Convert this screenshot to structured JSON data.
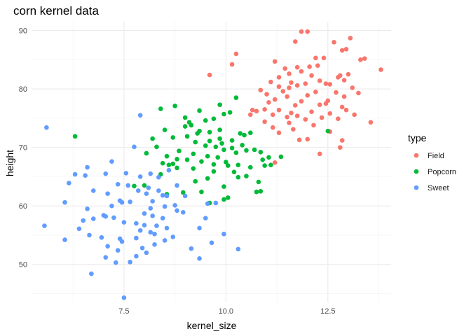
{
  "chart_data": {
    "type": "scatter",
    "title": "corn kernel data",
    "xlabel": "kernel_size",
    "ylabel": "height",
    "xlim": [
      5.25,
      14.05
    ],
    "ylim": [
      43.5,
      91.5
    ],
    "xticks": [
      7.5,
      10.0,
      12.5
    ],
    "xtick_labels": [
      "7.5",
      "10.0",
      "12.5"
    ],
    "yticks": [
      50,
      60,
      70,
      80,
      90
    ],
    "ytick_labels": [
      "50",
      "60",
      "70",
      "80",
      "90"
    ],
    "grid": true,
    "legend": {
      "title": "type",
      "placement": "right"
    },
    "series": [
      {
        "name": "Field",
        "color": "#F8766D",
        "points": [
          [
            11.85,
            89.8
          ],
          [
            12.0,
            89.8
          ],
          [
            12.65,
            88.0
          ],
          [
            13.05,
            88.7
          ],
          [
            11.7,
            88.1
          ],
          [
            12.85,
            86.6
          ],
          [
            12.95,
            86.8
          ],
          [
            13.3,
            85.0
          ],
          [
            13.4,
            85.2
          ],
          [
            12.4,
            85.3
          ],
          [
            12.2,
            85.3
          ],
          [
            11.2,
            84.7
          ],
          [
            10.25,
            86.0
          ],
          [
            10.15,
            84.2
          ],
          [
            11.55,
            82.6
          ],
          [
            11.85,
            83.0
          ],
          [
            12.05,
            83.8
          ],
          [
            12.25,
            84.0
          ],
          [
            13.0,
            82.5
          ],
          [
            13.8,
            83.3
          ],
          [
            12.8,
            82.3
          ],
          [
            9.6,
            82.4
          ],
          [
            11.3,
            82.0
          ],
          [
            11.45,
            83.5
          ],
          [
            11.75,
            83.7
          ],
          [
            12.1,
            82.3
          ],
          [
            12.75,
            82.0
          ],
          [
            12.9,
            81.5
          ],
          [
            11.1,
            81.2
          ],
          [
            11.6,
            81.1
          ],
          [
            11.95,
            80.9
          ],
          [
            12.3,
            81.4
          ],
          [
            12.45,
            80.9
          ],
          [
            12.55,
            80.8
          ],
          [
            13.1,
            80.2
          ],
          [
            11.3,
            80.4
          ],
          [
            11.55,
            80.2
          ],
          [
            11.75,
            80.6
          ],
          [
            11.4,
            79.6
          ],
          [
            10.85,
            79.8
          ],
          [
            12.2,
            79.5
          ],
          [
            12.7,
            79.4
          ],
          [
            13.25,
            79.3
          ],
          [
            11.0,
            79.1
          ],
          [
            11.5,
            78.7
          ],
          [
            12.0,
            78.9
          ],
          [
            12.9,
            78.7
          ],
          [
            11.2,
            78.2
          ],
          [
            11.85,
            77.9
          ],
          [
            12.5,
            78.0
          ],
          [
            12.3,
            77.3
          ],
          [
            11.05,
            77.7
          ],
          [
            11.7,
            77.2
          ],
          [
            12.85,
            76.9
          ],
          [
            12.45,
            77.5
          ],
          [
            10.95,
            76.5
          ],
          [
            11.3,
            76.4
          ],
          [
            11.6,
            75.9
          ],
          [
            12.1,
            76.1
          ],
          [
            10.65,
            76.4
          ],
          [
            10.75,
            76.2
          ],
          [
            10.6,
            75.6
          ],
          [
            12.95,
            76.4
          ],
          [
            13.15,
            75.6
          ],
          [
            11.15,
            75.6
          ],
          [
            11.5,
            75.2
          ],
          [
            12.35,
            75.1
          ],
          [
            12.55,
            75.8
          ],
          [
            11.75,
            75.4
          ],
          [
            10.95,
            74.4
          ],
          [
            11.55,
            74.2
          ],
          [
            11.95,
            74.8
          ],
          [
            12.75,
            74.9
          ],
          [
            13.55,
            74.3
          ],
          [
            11.15,
            73.4
          ],
          [
            11.65,
            73.1
          ],
          [
            12.15,
            73.8
          ],
          [
            11.3,
            72.5
          ],
          [
            12.55,
            72.7
          ],
          [
            12.0,
            71.4
          ],
          [
            11.8,
            71.3
          ],
          [
            12.85,
            71.2
          ],
          [
            12.8,
            70.0
          ],
          [
            12.3,
            68.9
          ],
          [
            11.2,
            67.4
          ]
        ]
      },
      {
        "name": "Popcorn",
        "color": "#00BA38",
        "points": [
          [
            10.25,
            78.5
          ],
          [
            9.85,
            77.3
          ],
          [
            8.75,
            77.1
          ],
          [
            8.4,
            76.6
          ],
          [
            9.35,
            76.3
          ],
          [
            10.1,
            76.0
          ],
          [
            9.95,
            75.7
          ],
          [
            9.0,
            75.1
          ],
          [
            9.5,
            74.6
          ],
          [
            9.7,
            74.9
          ],
          [
            9.1,
            74.3
          ],
          [
            9.0,
            73.6
          ],
          [
            9.15,
            73.8
          ],
          [
            9.35,
            72.8
          ],
          [
            9.6,
            72.6
          ],
          [
            9.85,
            73.0
          ],
          [
            8.5,
            73.0
          ],
          [
            9.3,
            72.4
          ],
          [
            9.05,
            71.9
          ],
          [
            8.7,
            71.7
          ],
          [
            8.2,
            71.5
          ],
          [
            8.3,
            70.1
          ],
          [
            9.85,
            71.5
          ],
          [
            9.6,
            71.1
          ],
          [
            9.9,
            70.7
          ],
          [
            10.15,
            71.2
          ],
          [
            10.35,
            72.4
          ],
          [
            10.45,
            72.1
          ],
          [
            10.6,
            72.5
          ],
          [
            9.25,
            70.9
          ],
          [
            9.5,
            70.3
          ],
          [
            9.75,
            70.1
          ],
          [
            9.95,
            69.6
          ],
          [
            10.15,
            69.9
          ],
          [
            10.4,
            70.4
          ],
          [
            10.25,
            69.1
          ],
          [
            10.5,
            69.5
          ],
          [
            8.85,
            69.4
          ],
          [
            9.2,
            68.9
          ],
          [
            9.55,
            68.5
          ],
          [
            9.8,
            68.3
          ],
          [
            8.05,
            69.0
          ],
          [
            8.55,
            68.5
          ],
          [
            8.8,
            68.0
          ],
          [
            9.05,
            67.9
          ],
          [
            9.4,
            67.6
          ],
          [
            10.0,
            67.5
          ],
          [
            10.3,
            67.0
          ],
          [
            10.7,
            69.6
          ],
          [
            10.85,
            69.2
          ],
          [
            11.05,
            68.3
          ],
          [
            11.35,
            68.4
          ],
          [
            10.9,
            67.9
          ],
          [
            8.45,
            67.3
          ],
          [
            8.7,
            67.2
          ],
          [
            8.6,
            67.0
          ],
          [
            9.7,
            67.1
          ],
          [
            10.05,
            66.9
          ],
          [
            10.6,
            66.6
          ],
          [
            10.95,
            66.9
          ],
          [
            11.1,
            67.0
          ],
          [
            8.8,
            66.5
          ],
          [
            9.2,
            66.4
          ],
          [
            8.4,
            65.4
          ],
          [
            9.7,
            65.9
          ],
          [
            10.2,
            65.8
          ],
          [
            10.3,
            64.9
          ],
          [
            10.5,
            65.1
          ],
          [
            9.55,
            64.7
          ],
          [
            9.25,
            64.2
          ],
          [
            9.95,
            63.3
          ],
          [
            10.8,
            64.1
          ],
          [
            10.75,
            62.4
          ],
          [
            10.85,
            62.5
          ],
          [
            8.95,
            62.3
          ],
          [
            8.55,
            62.0
          ],
          [
            9.4,
            62.4
          ],
          [
            10.05,
            61.4
          ],
          [
            7.75,
            63.4
          ],
          [
            8.0,
            63.5
          ],
          [
            9.6,
            60.5
          ],
          [
            9.95,
            61.1
          ],
          [
            12.5,
            72.8
          ],
          [
            6.3,
            71.9
          ]
        ]
      },
      {
        "name": "Sweet",
        "color": "#619CFF",
        "points": [
          [
            5.6,
            73.4
          ],
          [
            7.9,
            75.5
          ],
          [
            7.75,
            70.1
          ],
          [
            7.2,
            67.6
          ],
          [
            6.6,
            66.6
          ],
          [
            6.3,
            65.4
          ],
          [
            6.55,
            65.2
          ],
          [
            7.55,
            65.6
          ],
          [
            7.05,
            65.5
          ],
          [
            8.15,
            65.5
          ],
          [
            8.6,
            66.1
          ],
          [
            7.9,
            65.0
          ],
          [
            8.35,
            64.9
          ],
          [
            6.15,
            63.9
          ],
          [
            7.35,
            63.7
          ],
          [
            7.6,
            63.5
          ],
          [
            8.1,
            63.1
          ],
          [
            8.35,
            62.6
          ],
          [
            8.8,
            63.5
          ],
          [
            6.75,
            62.6
          ],
          [
            7.1,
            62.1
          ],
          [
            7.85,
            62.6
          ],
          [
            8.05,
            62.1
          ],
          [
            8.45,
            61.8
          ],
          [
            8.55,
            61.7
          ],
          [
            9.0,
            61.7
          ],
          [
            7.4,
            60.9
          ],
          [
            7.45,
            60.6
          ],
          [
            7.65,
            60.7
          ],
          [
            8.2,
            60.8
          ],
          [
            6.05,
            60.6
          ],
          [
            8.75,
            60.1
          ],
          [
            9.55,
            60.4
          ],
          [
            9.75,
            60.5
          ],
          [
            7.2,
            60.0
          ],
          [
            8.15,
            59.6
          ],
          [
            8.5,
            59.9
          ],
          [
            6.6,
            59.5
          ],
          [
            8.8,
            59.2
          ],
          [
            8.0,
            58.7
          ],
          [
            8.95,
            58.9
          ],
          [
            7.0,
            58.4
          ],
          [
            7.05,
            58.2
          ],
          [
            7.25,
            58.0
          ],
          [
            8.2,
            58.3
          ],
          [
            6.75,
            57.8
          ],
          [
            9.5,
            57.9
          ],
          [
            7.5,
            57.2
          ],
          [
            7.8,
            57.0
          ],
          [
            8.0,
            56.7
          ],
          [
            8.3,
            56.6
          ],
          [
            8.55,
            56.2
          ],
          [
            5.55,
            56.6
          ],
          [
            6.5,
            57.5
          ],
          [
            8.45,
            57.9
          ],
          [
            9.35,
            56.2
          ],
          [
            6.4,
            56.1
          ],
          [
            7.9,
            55.8
          ],
          [
            8.15,
            55.5
          ],
          [
            8.25,
            55.2
          ],
          [
            6.65,
            55.0
          ],
          [
            6.95,
            54.6
          ],
          [
            7.4,
            54.4
          ],
          [
            7.8,
            54.5
          ],
          [
            8.5,
            54.1
          ],
          [
            8.7,
            54.7
          ],
          [
            9.65,
            53.7
          ],
          [
            6.05,
            54.2
          ],
          [
            7.45,
            53.9
          ],
          [
            7.95,
            52.8
          ],
          [
            8.25,
            53.4
          ],
          [
            7.1,
            53.1
          ],
          [
            7.35,
            52.4
          ],
          [
            9.15,
            52.7
          ],
          [
            9.95,
            55.2
          ],
          [
            10.3,
            52.6
          ],
          [
            8.05,
            52.0
          ],
          [
            7.8,
            51.4
          ],
          [
            7.05,
            51.2
          ],
          [
            7.3,
            50.3
          ],
          [
            9.35,
            51.0
          ],
          [
            7.65,
            50.4
          ],
          [
            6.7,
            48.4
          ],
          [
            7.5,
            44.3
          ]
        ]
      }
    ]
  }
}
